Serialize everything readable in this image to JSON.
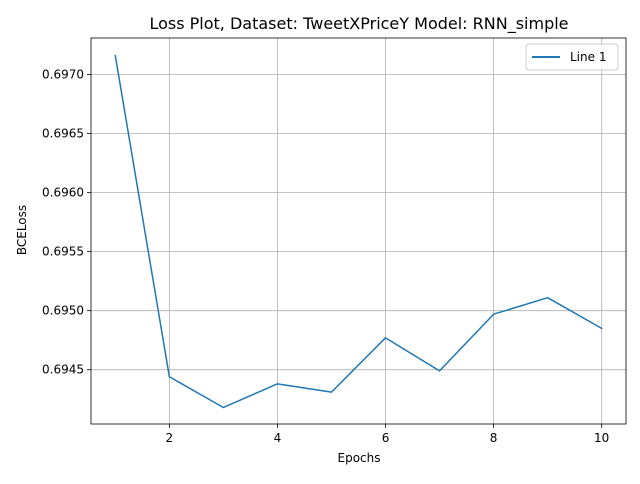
{
  "chart_data": {
    "type": "line",
    "title": "Loss Plot, Dataset: TweetXPriceY Model: RNN_simple",
    "xlabel": "Epochs",
    "ylabel": "BCELoss",
    "x": [
      1,
      2,
      3,
      4,
      5,
      6,
      7,
      8,
      9,
      10
    ],
    "series": [
      {
        "name": "Line 1",
        "color": "#1f77b4",
        "values": [
          0.69716,
          0.69444,
          0.69418,
          0.69438,
          0.69431,
          0.69477,
          0.69449,
          0.69497,
          0.69511,
          0.69485
        ]
      }
    ],
    "xlim": [
      0.55,
      10.45
    ],
    "ylim": [
      0.69404,
      0.69731
    ],
    "xticks": [
      2,
      4,
      6,
      8,
      10
    ],
    "xtick_labels": [
      "2",
      "4",
      "6",
      "8",
      "10"
    ],
    "yticks": [
      0.6945,
      0.695,
      0.6955,
      0.696,
      0.6965,
      0.697
    ],
    "ytick_labels": [
      "0.6945",
      "0.6950",
      "0.6955",
      "0.6960",
      "0.6965",
      "0.6970"
    ],
    "grid": true,
    "legend_position": "upper right"
  }
}
